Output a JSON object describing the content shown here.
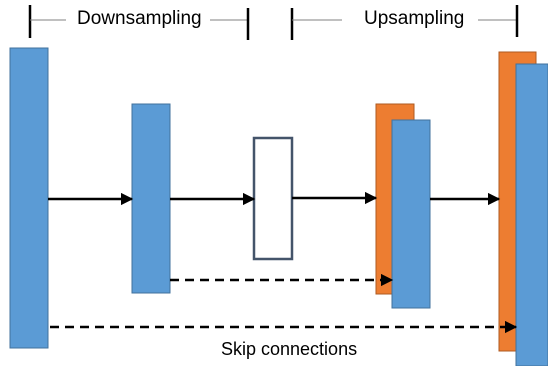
{
  "labels": {
    "downsampling": "Downsampling",
    "upsampling": "Upsampling",
    "skip_connections": "Skip connections"
  },
  "colors": {
    "block_fill": "#5b9bd5",
    "block_stroke": "#41719c",
    "skip_fill": "#ed7d31",
    "skip_stroke": "#ae5a21",
    "bottleneck_stroke": "#44546a",
    "arrow": "#000000"
  }
}
